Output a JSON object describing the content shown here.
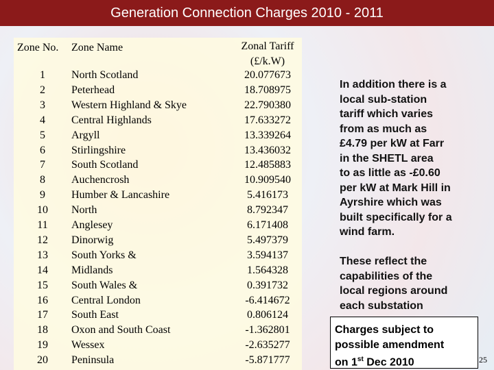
{
  "header": {
    "title": "Generation Connection Charges 2010 - 2011"
  },
  "table": {
    "columns": [
      "Zone No.",
      "Zone Name",
      "Zonal Tariff",
      "(£/k.W)"
    ],
    "rows": [
      [
        "1",
        "North Scotland",
        "20.077673"
      ],
      [
        "2",
        "Peterhead",
        "18.708975"
      ],
      [
        "3",
        "Western Highland & Skye",
        "22.790380"
      ],
      [
        "4",
        "Central Highlands",
        "17.633272"
      ],
      [
        "5",
        "Argyll",
        "13.339264"
      ],
      [
        "6",
        "Stirlingshire",
        "13.436032"
      ],
      [
        "7",
        "South Scotland",
        "12.485883"
      ],
      [
        "8",
        "Auchencrosh",
        "10.909540"
      ],
      [
        "9",
        "Humber & Lancashire",
        "5.416173"
      ],
      [
        "10",
        "North",
        "8.792347"
      ],
      [
        "11",
        "Anglesey",
        "6.171408"
      ],
      [
        "12",
        "Dinorwig",
        "5.497379"
      ],
      [
        "13",
        "South Yorks &",
        "3.594137"
      ],
      [
        "14",
        "Midlands",
        "1.564328"
      ],
      [
        "15",
        "South Wales &",
        "0.391732"
      ],
      [
        "16",
        "Central London",
        "-6.414672"
      ],
      [
        "17",
        "South East",
        "0.806124"
      ],
      [
        "18",
        "Oxon and South Coast",
        "-1.362801"
      ],
      [
        "19",
        "Wessex",
        "-2.635277"
      ],
      [
        "20",
        "Peninsula",
        "-5.871777"
      ]
    ]
  },
  "notes": [
    {
      "lines": [
        "In addition there is a",
        "local sub-station",
        "tariff which varies",
        "from as much as",
        "£4.79 per kW at Farr",
        "in the SHETL area",
        "to as little as -£0.60",
        "per kW at Mark Hill in",
        "Ayrshire which was",
        "built specifically for a",
        "wind farm."
      ]
    },
    {
      "lines": [
        "These reflect the",
        "capabilities of the",
        "local regions around",
        "each substation"
      ]
    }
  ],
  "box": {
    "lines": [
      "Charges subject to",
      "possible amendment"
    ],
    "last_before": "on 1",
    "superscript": "st",
    "last_after": " Dec 2010"
  },
  "page_number": "25"
}
